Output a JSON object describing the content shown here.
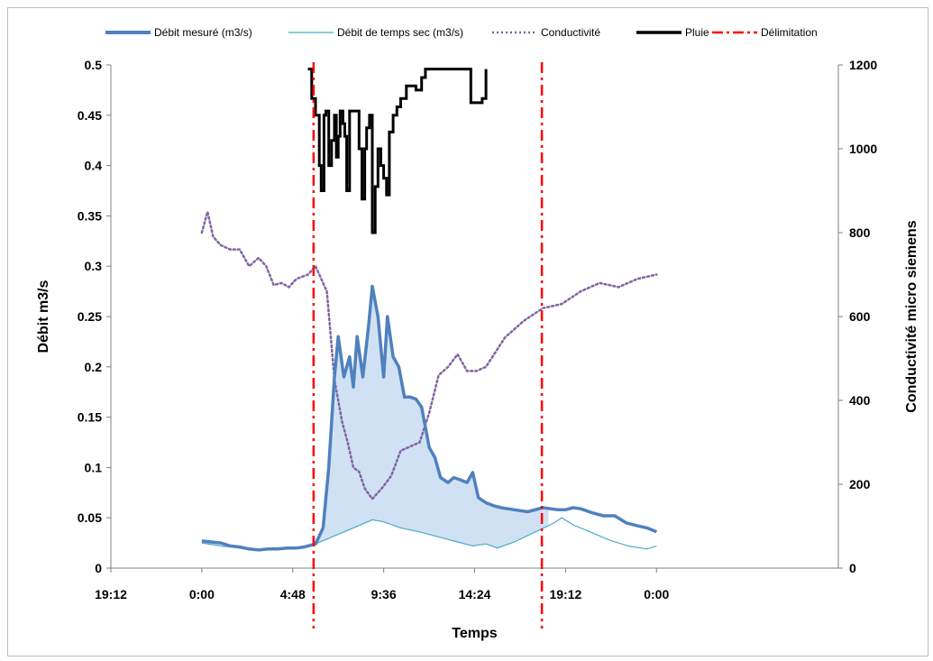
{
  "chart_data": {
    "type": "line",
    "xlabel": "Temps",
    "ylabel_left": "Débit m3/s",
    "ylabel_right": "Conductivité micro siemens",
    "x_unit": "hours (0 = 0:00 of day 1)",
    "xlim": [
      -4.8,
      33.6
    ],
    "ylim_left": [
      0,
      0.5
    ],
    "ylim_right": [
      0,
      1200
    ],
    "x_ticks": [
      {
        "value": -4.8,
        "label": "19:12"
      },
      {
        "value": 0,
        "label": "0:00"
      },
      {
        "value": 4.8,
        "label": "4:48"
      },
      {
        "value": 9.6,
        "label": "9:36"
      },
      {
        "value": 14.4,
        "label": "14:24"
      },
      {
        "value": 19.2,
        "label": "19:12"
      },
      {
        "value": 24,
        "label": "0:00"
      }
    ],
    "y_ticks_left": [
      {
        "value": 0,
        "label": "0"
      },
      {
        "value": 0.05,
        "label": "0.05"
      },
      {
        "value": 0.1,
        "label": "0.1"
      },
      {
        "value": 0.15,
        "label": "0.15"
      },
      {
        "value": 0.2,
        "label": "0.2"
      },
      {
        "value": 0.25,
        "label": "0.25"
      },
      {
        "value": 0.3,
        "label": "0.3"
      },
      {
        "value": 0.35,
        "label": "0.35"
      },
      {
        "value": 0.4,
        "label": "0.4"
      },
      {
        "value": 0.45,
        "label": "0.45"
      },
      {
        "value": 0.5,
        "label": "0.5"
      }
    ],
    "y_ticks_right": [
      {
        "value": 0,
        "label": "0"
      },
      {
        "value": 200,
        "label": "200"
      },
      {
        "value": 400,
        "label": "400"
      },
      {
        "value": 600,
        "label": "600"
      },
      {
        "value": 800,
        "label": "800"
      },
      {
        "value": 1000,
        "label": "1000"
      },
      {
        "value": 1200,
        "label": "1200"
      }
    ],
    "legend_position": "top",
    "series": [
      {
        "name": "Débit mesuré (m3/s)",
        "axis": "left",
        "color": "#4f81bd",
        "style": "thick",
        "x": [
          0,
          0.5,
          1,
          1.5,
          2,
          2.5,
          3,
          3.5,
          4,
          4.5,
          5,
          5.4,
          6,
          6.4,
          6.7,
          7,
          7.2,
          7.5,
          7.8,
          8.0,
          8.2,
          8.5,
          8.8,
          9.0,
          9.3,
          9.6,
          9.8,
          10.1,
          10.4,
          10.7,
          11,
          11.3,
          11.6,
          12,
          12.3,
          12.6,
          13,
          13.3,
          13.6,
          14,
          14.3,
          14.6,
          15,
          15.4,
          15.8,
          16.5,
          17.2,
          18,
          18.8,
          19.2,
          19.6,
          20,
          20.6,
          21.2,
          21.8,
          22.4,
          23,
          23.5,
          24
        ],
        "y": [
          0.027,
          0.026,
          0.025,
          0.022,
          0.021,
          0.019,
          0.018,
          0.019,
          0.019,
          0.02,
          0.02,
          0.021,
          0.024,
          0.04,
          0.1,
          0.19,
          0.23,
          0.19,
          0.21,
          0.18,
          0.23,
          0.19,
          0.24,
          0.28,
          0.25,
          0.19,
          0.25,
          0.21,
          0.2,
          0.17,
          0.17,
          0.168,
          0.16,
          0.12,
          0.11,
          0.09,
          0.085,
          0.09,
          0.088,
          0.085,
          0.095,
          0.07,
          0.065,
          0.062,
          0.06,
          0.058,
          0.056,
          0.06,
          0.058,
          0.058,
          0.06,
          0.059,
          0.055,
          0.052,
          0.052,
          0.045,
          0.042,
          0.04,
          0.036
        ]
      },
      {
        "name": "Débit de temps sec (m3/s)",
        "axis": "left",
        "color": "#4bacc6",
        "style": "thin",
        "x": [
          0,
          1,
          2,
          3,
          4,
          5,
          6,
          7,
          8,
          9,
          9.6,
          10.5,
          11.5,
          12.5,
          13.5,
          14.3,
          15,
          15.6,
          16.5,
          17.5,
          18.5,
          19,
          19.6,
          20.5,
          21.5,
          22.5,
          23.5,
          24
        ],
        "y": [
          0.025,
          0.022,
          0.02,
          0.019,
          0.019,
          0.02,
          0.024,
          0.032,
          0.04,
          0.048,
          0.046,
          0.04,
          0.036,
          0.031,
          0.026,
          0.022,
          0.024,
          0.02,
          0.026,
          0.035,
          0.044,
          0.05,
          0.043,
          0.036,
          0.028,
          0.022,
          0.019,
          0.022
        ]
      },
      {
        "name": "Conductivité",
        "axis": "right",
        "color": "#8064a2",
        "style": "dotted",
        "x": [
          0,
          0.3,
          0.6,
          1,
          1.5,
          2,
          2.5,
          3,
          3.4,
          3.8,
          4.2,
          4.6,
          5,
          5.6,
          6,
          6.6,
          7,
          7.4,
          7.7,
          8.0,
          8.3,
          8.6,
          9.0,
          9.5,
          10,
          10.5,
          11,
          11.5,
          12,
          12.5,
          13,
          13.5,
          14,
          14.5,
          15,
          16,
          17,
          18,
          19,
          20,
          21,
          22,
          23,
          24
        ],
        "y": [
          800,
          850,
          790,
          770,
          760,
          760,
          720,
          740,
          720,
          675,
          680,
          670,
          690,
          700,
          720,
          660,
          450,
          350,
          300,
          240,
          230,
          190,
          165,
          190,
          220,
          280,
          290,
          300,
          370,
          460,
          480,
          510,
          470,
          470,
          480,
          550,
          590,
          620,
          630,
          660,
          680,
          670,
          690,
          700
        ]
      },
      {
        "name": "Pluie",
        "axis": "right",
        "color": "#000000",
        "style": "thick",
        "x": [
          5.6,
          5.8,
          6.0,
          6.2,
          6.3,
          6.45,
          6.55,
          6.7,
          6.85,
          7.0,
          7.1,
          7.2,
          7.3,
          7.45,
          7.55,
          7.65,
          7.8,
          8.0,
          8.3,
          8.45,
          8.6,
          8.7,
          8.85,
          9.0,
          9.15,
          9.3,
          9.45,
          9.6,
          9.75,
          9.9,
          10.1,
          10.3,
          10.5,
          10.8,
          11.0,
          11.3,
          11.6,
          11.8,
          12.0,
          12.2,
          12.6,
          13.0,
          13.5,
          14.0,
          14.2,
          14.5,
          14.8,
          15.0
        ],
        "y": [
          1190,
          1120,
          1080,
          960,
          900,
          1080,
          1090,
          960,
          1020,
          1080,
          980,
          1030,
          1090,
          1060,
          1030,
          900,
          1090,
          1090,
          1000,
          880,
          1000,
          1050,
          1080,
          800,
          910,
          1000,
          960,
          930,
          890,
          1040,
          1080,
          1100,
          1120,
          1150,
          1150,
          1140,
          1170,
          1190,
          1190,
          1190,
          1190,
          1190,
          1190,
          1190,
          1110,
          1110,
          1120,
          1190
        ]
      },
      {
        "name": "Délimitation",
        "axis": "left",
        "color": "#ff0000",
        "style": "dash-dot",
        "x_positions": [
          5.9,
          17.95
        ]
      }
    ]
  }
}
